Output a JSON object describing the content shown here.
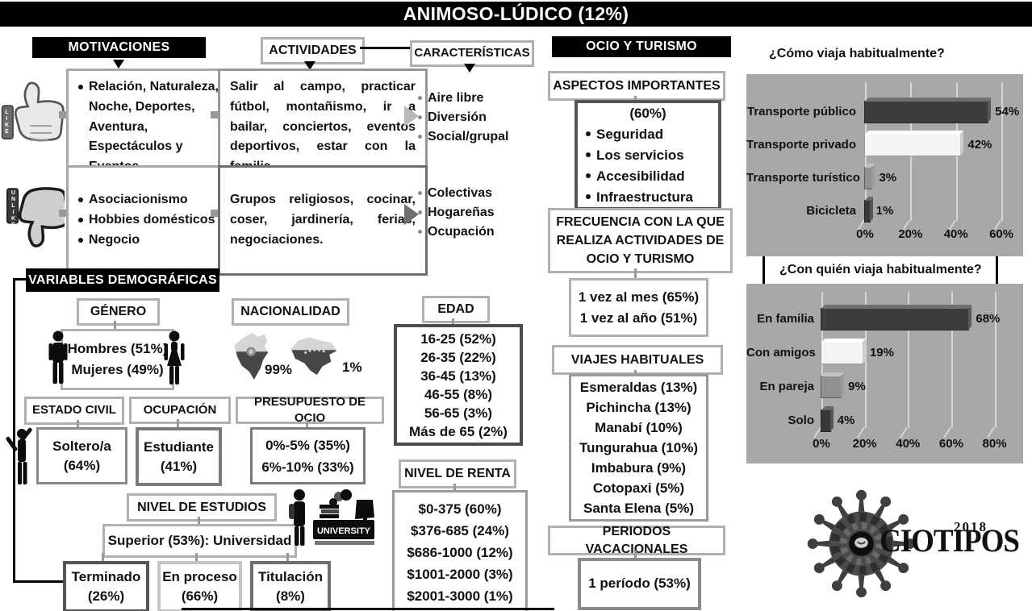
{
  "title": "ANIMOSO-LÚDICO (12%)",
  "colors": {
    "black": "#000000",
    "panel_gray": "#a8a8a8",
    "gridline": "#d6d6d6",
    "border_light": "#b0b0b0",
    "border_mid": "#7a7a7a",
    "border_dark": "#4d4d4d"
  },
  "motivations": {
    "header": "MOTIVACIONES",
    "positive": "Relación, Naturaleza, Noche, Deportes, Aventura, Espectáculos y Eventos.",
    "negative": [
      "Asociacionismo",
      "Hobbies domésticos",
      "Negocio"
    ]
  },
  "activities": {
    "header": "ACTIVIDADES",
    "positive": "Salir al campo, practicar fútbol, montañismo, ir a bailar, conciertos, eventos deportivos, estar con la familia.",
    "negative": "Grupos religiosos, cocinar, coser, jardinería, ferias, negociaciones."
  },
  "characteristics": {
    "header": "CARACTERÍSTICAS",
    "positive": [
      "Aire libre",
      "Diversión",
      "Social/grupal"
    ],
    "negative": [
      "Colectivas",
      "Hogareñas",
      "Ocupación"
    ]
  },
  "icons": {
    "like_label": "LIKE",
    "unlike_label": "UNLIKE",
    "university_label": "UNIVERSITY"
  },
  "demographics": {
    "header": "VARIABLES DEMOGRÁFICAS",
    "genero": {
      "header": "GÉNERO",
      "lines": [
        "Hombres (51%)",
        "Mujeres (49%)"
      ]
    },
    "nacionalidad": {
      "header": "NACIONALIDAD",
      "ecuador_pct": "99%",
      "venezuela_pct": "1%"
    },
    "edad": {
      "header": "EDAD",
      "items": [
        "16-25 (52%)",
        "26-35 (22%)",
        "36-45 (13%)",
        "46-55 (8%)",
        "56-65 (3%)",
        "Más de 65 (2%)"
      ]
    },
    "estado_civil": {
      "header": "ESTADO CIVIL",
      "lines": [
        "Soltero/a",
        "(64%)"
      ]
    },
    "ocupacion": {
      "header": "OCUPACIÓN",
      "lines": [
        "Estudiante",
        "(41%)"
      ]
    },
    "presupuesto": {
      "header": "PRESUPUESTO DE OCIO",
      "items": [
        "0%-5% (35%)",
        "6%-10% (33%)"
      ]
    },
    "estudios": {
      "header": "NIVEL DE ESTUDIOS",
      "superior": "Superior (53%): Universidad",
      "sub": [
        {
          "l1": "Terminado",
          "l2": "(26%)"
        },
        {
          "l1": "En proceso",
          "l2": "(66%)"
        },
        {
          "l1": "Titulación",
          "l2": "(8%)"
        }
      ]
    },
    "renta": {
      "header": "NIVEL DE RENTA",
      "items": [
        "$0-375 (60%)",
        "$376-685 (24%)",
        "$686-1000 (12%)",
        "$1001-2000 (3%)",
        "$2001-3000 (1%)"
      ]
    }
  },
  "ocio": {
    "header": "OCIO Y TURISMO",
    "aspectos": {
      "header": "ASPECTOS IMPORTANTES",
      "pct": "(60%)",
      "items": [
        "Seguridad",
        "Los servicios",
        "Accesibilidad",
        "Infraestructura"
      ]
    },
    "frecuencia": {
      "header": "FRECUENCIA CON LA QUE REALIZA ACTIVIDADES DE OCIO Y TURISMO",
      "items": [
        "1 vez al mes (65%)",
        "1 vez al año (51%)"
      ]
    },
    "viajes": {
      "header": "VIAJES HABITUALES",
      "items": [
        "Esmeraldas (13%)",
        "Pichincha (13%)",
        "Manabí (10%)",
        "Tungurahua (10%)",
        "Imbabura (9%)",
        "Cotopaxi (5%)",
        "Santa Elena (5%)"
      ]
    },
    "periodos": {
      "header": "PERIODOS VACACIONALES",
      "value": "1 período (53%)"
    }
  },
  "chart_data": [
    {
      "type": "bar",
      "title": "¿Cómo viaja habitualmente?",
      "categories": [
        "Transporte público",
        "Transporte privado",
        "Transporte turístico",
        "Bicicleta"
      ],
      "values": [
        54,
        42,
        3,
        1
      ],
      "value_labels": [
        "54%",
        "42%",
        "3%",
        "1%"
      ],
      "xticks": [
        "0%",
        "20%",
        "40%",
        "60%"
      ],
      "xlim": [
        0,
        66
      ],
      "grid": true,
      "legend": false,
      "panel_bg": "#a8a8a8",
      "bar_styles": [
        {
          "fill": "#3d3d3d",
          "top": "#707070",
          "edge": "#2a2a2a"
        },
        {
          "fill": "#f4f4f4",
          "top": "#ffffff",
          "edge": "#9a9a9a"
        },
        {
          "fill": "#909090",
          "top": "#c2c2c2",
          "edge": "#5d5d5d"
        },
        {
          "fill": "#383838",
          "top": "#6a6a6a",
          "edge": "#222222"
        }
      ]
    },
    {
      "type": "bar",
      "title": "¿Con quién viaja habitualmente?",
      "categories": [
        "En familia",
        "Con amigos",
        "En pareja",
        "Solo"
      ],
      "values": [
        68,
        19,
        9,
        4
      ],
      "value_labels": [
        "68%",
        "19%",
        "9%",
        "4%"
      ],
      "xticks": [
        "0%",
        "20%",
        "40%",
        "60%",
        "80%"
      ],
      "xlim": [
        0,
        88
      ],
      "grid": true,
      "legend": false,
      "panel_bg": "#a8a8a8",
      "bar_styles": [
        {
          "fill": "#3d3d3d",
          "top": "#707070",
          "edge": "#2a2a2a"
        },
        {
          "fill": "#f4f4f4",
          "top": "#ffffff",
          "edge": "#9a9a9a"
        },
        {
          "fill": "#909090",
          "top": "#c2c2c2",
          "edge": "#5d5d5d"
        },
        {
          "fill": "#383838",
          "top": "#6a6a6a",
          "edge": "#222222"
        }
      ]
    }
  ],
  "logo": {
    "name": "OCIOTIPOS",
    "letters": "CIOTIPOS",
    "year": "2018"
  }
}
